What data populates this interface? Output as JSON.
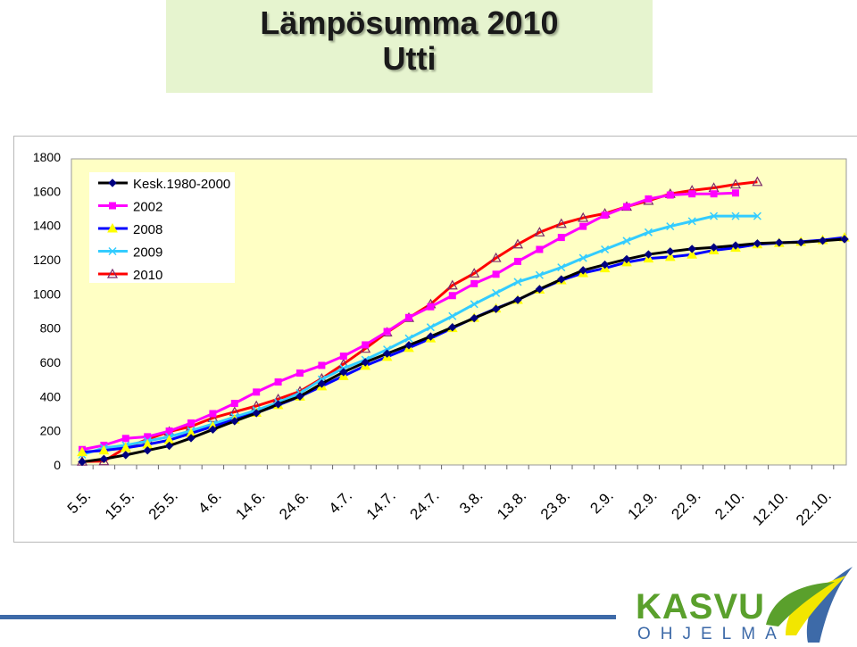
{
  "title": {
    "line1": "Lämpösumma 2010",
    "line2": "Utti"
  },
  "chart_data": {
    "type": "line",
    "ylim": [
      0,
      1800
    ],
    "yticks": [
      0,
      200,
      400,
      600,
      800,
      1000,
      1200,
      1400,
      1600,
      1800
    ],
    "xtick_labels": [
      "5.5.",
      "15.5.",
      "25.5.",
      "4.6.",
      "14.6.",
      "24.6.",
      "4.7.",
      "14.7.",
      "24.7.",
      "3.8.",
      "13.8.",
      "23.8.",
      "2.9.",
      "12.9.",
      "22.9.",
      "2.10.",
      "12.10.",
      "22.10."
    ],
    "x_points_per_label": 2,
    "grid": false,
    "legend_position": "top-left",
    "plot_background": "#ffffc4",
    "series": [
      {
        "name": "Kesk.1980-2000",
        "color": "#000080",
        "line_color": "#000000",
        "marker": "diamond",
        "values": [
          18,
          35,
          58,
          85,
          112,
          157,
          207,
          256,
          303,
          355,
          401,
          475,
          543,
          600,
          651,
          700,
          751,
          805,
          858,
          912,
          965,
          1028,
          1085,
          1138,
          1171,
          1203,
          1231,
          1248,
          1263,
          1272,
          1283,
          1295,
          1300,
          1302,
          1311,
          1320
        ]
      },
      {
        "name": "2002",
        "color": "#ff00ff",
        "marker": "square",
        "values": [
          90,
          115,
          155,
          165,
          198,
          245,
          300,
          360,
          426,
          485,
          537,
          582,
          636,
          702,
          780,
          862,
          925,
          990,
          1060,
          1115,
          1190,
          1260,
          1330,
          1395,
          1460,
          1510,
          1555,
          1578,
          1585,
          1585,
          1590
        ]
      },
      {
        "name": "2008",
        "color": "#0000ff",
        "line_color": "#0000ff",
        "marker": "triangle-filled",
        "marker_color": "#ffff00",
        "values": [
          75,
          85,
          100,
          120,
          145,
          185,
          225,
          265,
          305,
          350,
          400,
          460,
          520,
          580,
          632,
          684,
          740,
          800,
          860,
          915,
          965,
          1025,
          1080,
          1122,
          1150,
          1185,
          1207,
          1216,
          1230,
          1255,
          1270,
          1290,
          1298,
          1305,
          1315,
          1330
        ]
      },
      {
        "name": "2009",
        "color": "#33ccff",
        "marker": "x",
        "values": [
          60,
          100,
          115,
          140,
          165,
          200,
          240,
          280,
          320,
          365,
          420,
          500,
          565,
          615,
          675,
          740,
          805,
          870,
          940,
          1005,
          1070,
          1110,
          1155,
          1210,
          1260,
          1310,
          1360,
          1395,
          1425,
          1455,
          1455,
          1455
        ]
      },
      {
        "name": "2010",
        "color": "#ff0000",
        "marker": "triangle-open",
        "marker_color": "#7a2a6a",
        "values": [
          20,
          22,
          100,
          150,
          195,
          225,
          275,
          310,
          345,
          385,
          430,
          505,
          590,
          680,
          775,
          860,
          940,
          1050,
          1120,
          1210,
          1290,
          1360,
          1410,
          1445,
          1470,
          1510,
          1545,
          1585,
          1605,
          1620,
          1640,
          1655
        ]
      }
    ]
  },
  "logo": {
    "name": "KASVU",
    "subtitle": "OHJELMA",
    "colors": {
      "green": "#5aa02c",
      "blue": "#3d6aa8",
      "yellow": "#f2e600"
    }
  }
}
